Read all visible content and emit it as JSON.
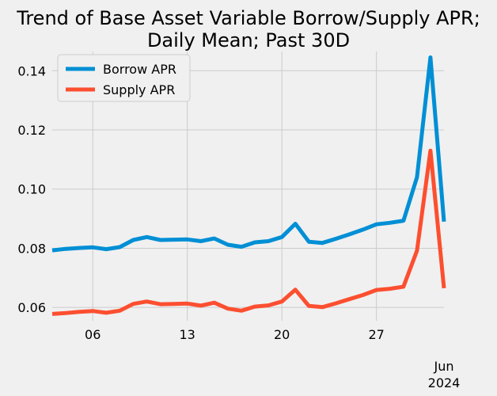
{
  "chart_data": {
    "type": "line",
    "title": "Trend of Base Asset Variable Borrow/Supply APR;",
    "subtitle": "Daily Mean; Past 30D",
    "xlabel": "",
    "ylabel": "",
    "legend_position": "top-left",
    "grid": true,
    "x": [
      "2024-05-03",
      "2024-05-04",
      "2024-05-05",
      "2024-05-06",
      "2024-05-07",
      "2024-05-08",
      "2024-05-09",
      "2024-05-10",
      "2024-05-11",
      "2024-05-12",
      "2024-05-13",
      "2024-05-14",
      "2024-05-15",
      "2024-05-16",
      "2024-05-17",
      "2024-05-18",
      "2024-05-19",
      "2024-05-20",
      "2024-05-21",
      "2024-05-22",
      "2024-05-23",
      "2024-05-24",
      "2024-05-25",
      "2024-05-26",
      "2024-05-27",
      "2024-05-28",
      "2024-05-29",
      "2024-05-30",
      "2024-05-31",
      "2024-06-01"
    ],
    "xlim": [
      "2024-05-03",
      "2024-06-01"
    ],
    "ylim": [
      0.0555,
      0.1465
    ],
    "x_ticks": [
      {
        "date": "2024-05-06",
        "label": "06"
      },
      {
        "date": "2024-05-13",
        "label": "13"
      },
      {
        "date": "2024-05-20",
        "label": "20"
      },
      {
        "date": "2024-05-27",
        "label": "27"
      },
      {
        "date": "2024-06-01",
        "label": "Jun"
      }
    ],
    "x_tick_sublabel": "2024",
    "y_ticks": [
      0.06,
      0.08,
      0.1,
      0.12,
      0.14
    ],
    "y_tick_labels": [
      "0.06",
      "0.08",
      "0.10",
      "0.12",
      "0.14"
    ],
    "series": [
      {
        "name": "Borrow APR",
        "color": "#008fd5",
        "values": [
          0.0793,
          0.0798,
          0.0801,
          0.0803,
          0.0797,
          0.0804,
          0.0828,
          0.0838,
          0.0828,
          0.0829,
          0.083,
          0.0824,
          0.0833,
          0.0812,
          0.0805,
          0.082,
          0.0824,
          0.0838,
          0.0883,
          0.0822,
          0.0818,
          0.0832,
          0.0847,
          0.0863,
          0.0881,
          0.0886,
          0.0893,
          0.104,
          0.1445,
          0.089
        ]
      },
      {
        "name": "Supply APR",
        "color": "#fc4f30",
        "values": [
          0.0578,
          0.0581,
          0.0585,
          0.0588,
          0.0582,
          0.0589,
          0.0612,
          0.062,
          0.0611,
          0.0612,
          0.0613,
          0.0606,
          0.0616,
          0.0596,
          0.0589,
          0.0603,
          0.0607,
          0.062,
          0.066,
          0.0605,
          0.0601,
          0.0614,
          0.0628,
          0.0642,
          0.0659,
          0.0663,
          0.067,
          0.0792,
          0.113,
          0.0665
        ]
      }
    ]
  }
}
